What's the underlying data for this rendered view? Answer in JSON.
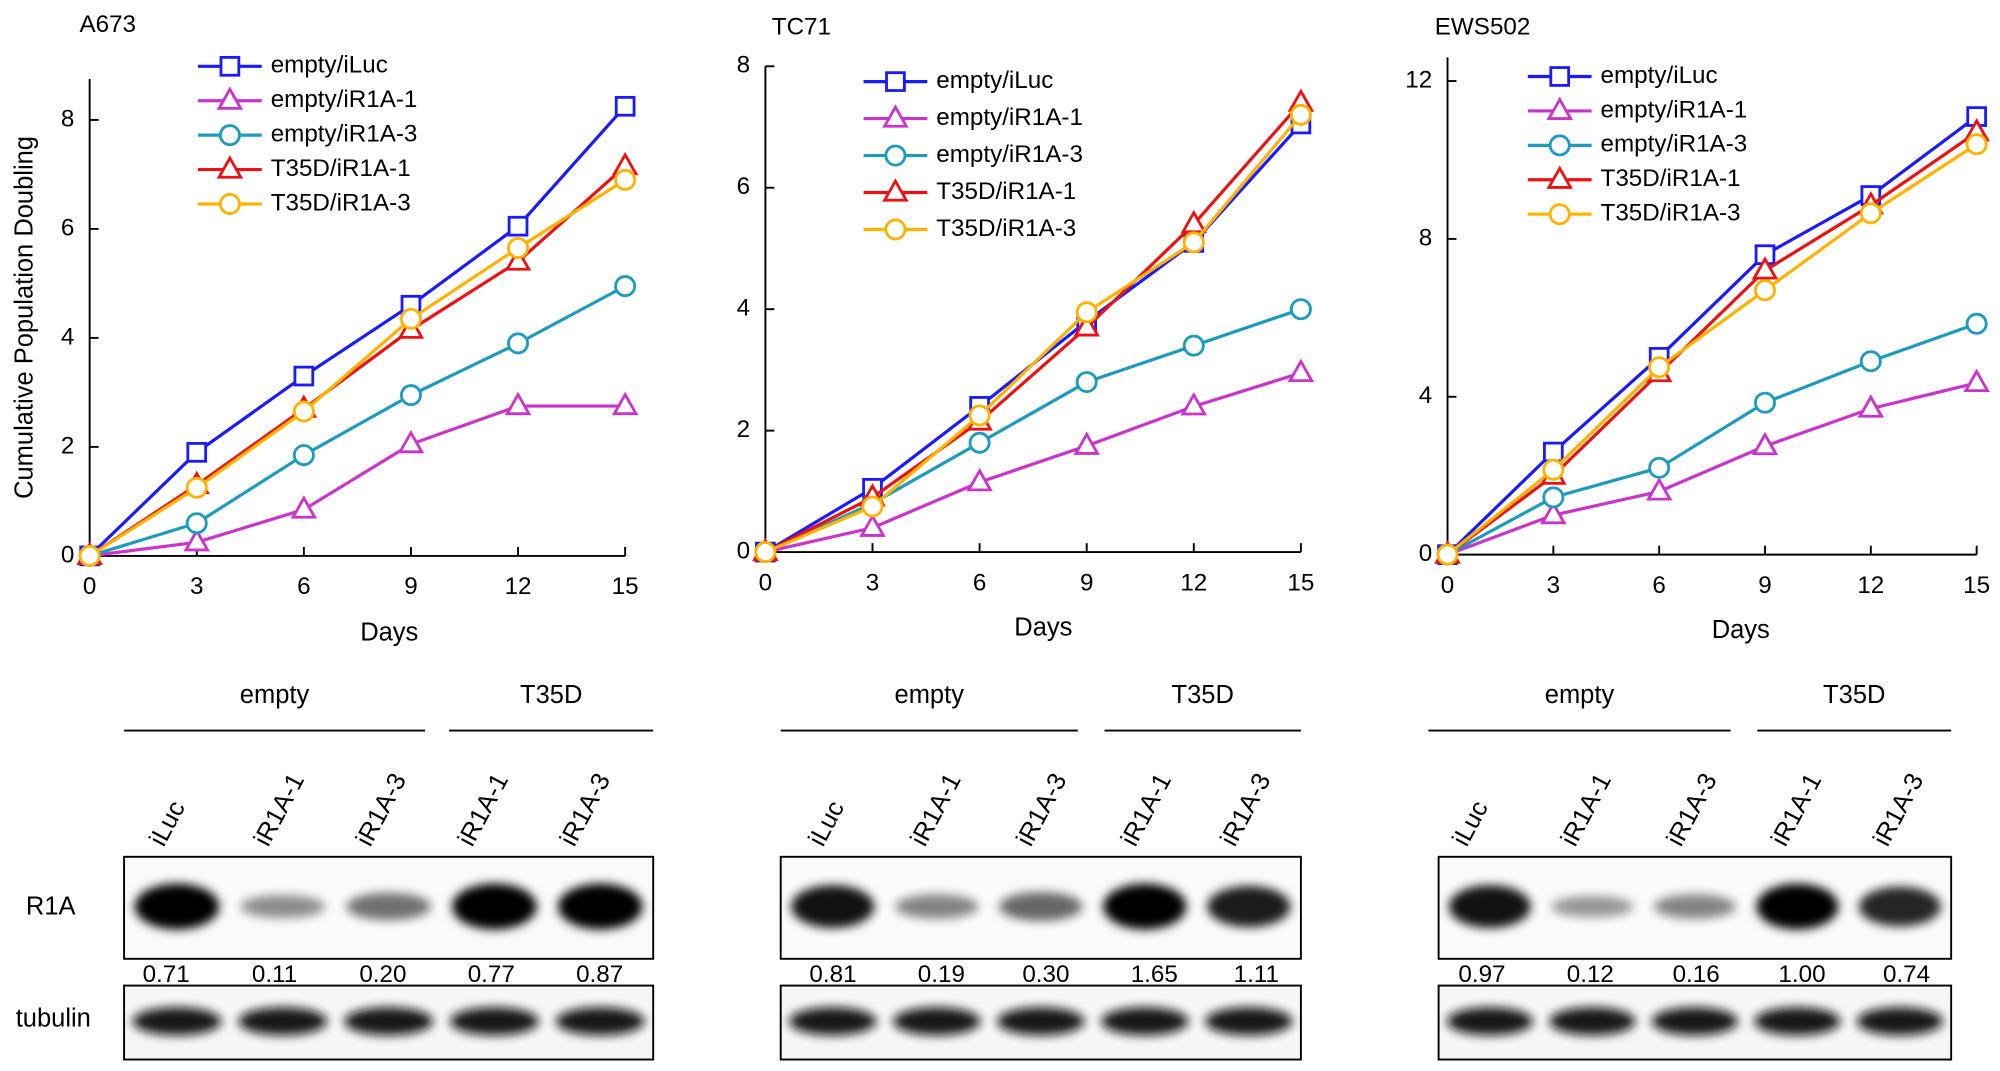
{
  "chart_data": [
    {
      "type": "line",
      "title": "A673",
      "x_label": "Days",
      "y_label": "Cumulative Population Doubling",
      "x": [
        0,
        3,
        6,
        9,
        12,
        15
      ],
      "xlim": [
        0,
        15
      ],
      "xticks": [
        0,
        3,
        6,
        9,
        12,
        15
      ],
      "ylim": [
        0,
        8.75
      ],
      "yticks": [
        0,
        2,
        4,
        6,
        8
      ],
      "series": [
        {
          "name": "empty/iLuc",
          "color": "#1a1aff",
          "marker": "square",
          "values": [
            0,
            1.9,
            3.3,
            4.6,
            6.05,
            8.25
          ]
        },
        {
          "name": "empty/iR1A-1",
          "color": "#cc33cc",
          "marker": "triangle",
          "values": [
            0,
            0.25,
            0.85,
            2.05,
            2.75,
            2.75
          ]
        },
        {
          "name": "empty/iR1A-3",
          "color": "#1a9bbf",
          "marker": "circle",
          "values": [
            0,
            0.6,
            1.85,
            2.95,
            3.9,
            4.95
          ]
        },
        {
          "name": "T35D/iR1A-1",
          "color": "#ee1111",
          "marker": "triangle",
          "values": [
            0,
            1.3,
            2.7,
            4.15,
            5.4,
            7.15
          ]
        },
        {
          "name": "T35D/iR1A-3",
          "color": "#ffb300",
          "marker": "circle",
          "values": [
            0,
            1.25,
            2.65,
            4.35,
            5.65,
            6.9
          ]
        }
      ]
    },
    {
      "type": "line",
      "title": "TC71",
      "x_label": "Days",
      "x": [
        0,
        3,
        6,
        9,
        12,
        15
      ],
      "xlim": [
        0,
        15
      ],
      "xticks": [
        0,
        3,
        6,
        9,
        12,
        15
      ],
      "ylim": [
        0,
        8
      ],
      "yticks": [
        0,
        2,
        4,
        6,
        8
      ],
      "series": [
        {
          "name": "empty/iLuc",
          "color": "#1a1aff",
          "marker": "square",
          "values": [
            0,
            1.05,
            2.4,
            3.8,
            5.1,
            7.05
          ]
        },
        {
          "name": "empty/iR1A-1",
          "color": "#cc33cc",
          "marker": "triangle",
          "values": [
            0,
            0.4,
            1.15,
            1.75,
            2.4,
            2.95
          ]
        },
        {
          "name": "empty/iR1A-3",
          "color": "#1a9bbf",
          "marker": "circle",
          "values": [
            0,
            0.8,
            1.8,
            2.8,
            3.4,
            4.0
          ]
        },
        {
          "name": "T35D/iR1A-1",
          "color": "#ee1111",
          "marker": "triangle",
          "values": [
            0,
            0.9,
            2.15,
            3.7,
            5.4,
            7.4
          ]
        },
        {
          "name": "T35D/iR1A-3",
          "color": "#ffb300",
          "marker": "circle",
          "values": [
            0,
            0.75,
            2.25,
            3.95,
            5.1,
            7.2
          ]
        }
      ]
    },
    {
      "type": "line",
      "title": "EWS502",
      "x_label": "Days",
      "x": [
        0,
        3,
        6,
        9,
        12,
        15
      ],
      "xlim": [
        0,
        15
      ],
      "xticks": [
        0,
        3,
        6,
        9,
        12,
        15
      ],
      "ylim": [
        0,
        12.6
      ],
      "yticks": [
        0,
        4,
        8,
        12
      ],
      "series": [
        {
          "name": "empty/iLuc",
          "color": "#1a1aff",
          "marker": "square",
          "values": [
            0,
            2.6,
            5.0,
            7.6,
            9.1,
            11.1
          ]
        },
        {
          "name": "empty/iR1A-1",
          "color": "#cc33cc",
          "marker": "triangle",
          "values": [
            0,
            1.0,
            1.6,
            2.75,
            3.7,
            4.35
          ]
        },
        {
          "name": "empty/iR1A-3",
          "color": "#1a9bbf",
          "marker": "circle",
          "values": [
            0,
            1.45,
            2.2,
            3.85,
            4.9,
            5.85
          ]
        },
        {
          "name": "T35D/iR1A-1",
          "color": "#ee1111",
          "marker": "triangle",
          "values": [
            0,
            2.0,
            4.6,
            7.2,
            8.85,
            10.7
          ]
        },
        {
          "name": "T35D/iR1A-3",
          "color": "#ffb300",
          "marker": "circle",
          "values": [
            0,
            2.15,
            4.75,
            6.7,
            8.65,
            10.4
          ]
        }
      ]
    }
  ],
  "blot_row_labels": [
    "R1A",
    "tubulin"
  ],
  "blots": [
    {
      "groups": [
        "empty",
        "T35D"
      ],
      "lanes": [
        "iLuc",
        "iR1A-1",
        "iR1A-3",
        "iR1A-1",
        "iR1A-3"
      ],
      "quantities": [
        "0.71",
        "0.11",
        "0.20",
        "0.77",
        "0.87"
      ]
    },
    {
      "groups": [
        "empty",
        "T35D"
      ],
      "lanes": [
        "iLuc",
        "iR1A-1",
        "iR1A-3",
        "iR1A-1",
        "iR1A-3"
      ],
      "quantities": [
        "0.81",
        "0.19",
        "0.30",
        "1.65",
        "1.11"
      ]
    },
    {
      "groups": [
        "empty",
        "T35D"
      ],
      "lanes": [
        "iLuc",
        "iR1A-1",
        "iR1A-3",
        "iR1A-1",
        "iR1A-3"
      ],
      "quantities": [
        "0.97",
        "0.12",
        "0.16",
        "1.00",
        "0.74"
      ]
    }
  ]
}
